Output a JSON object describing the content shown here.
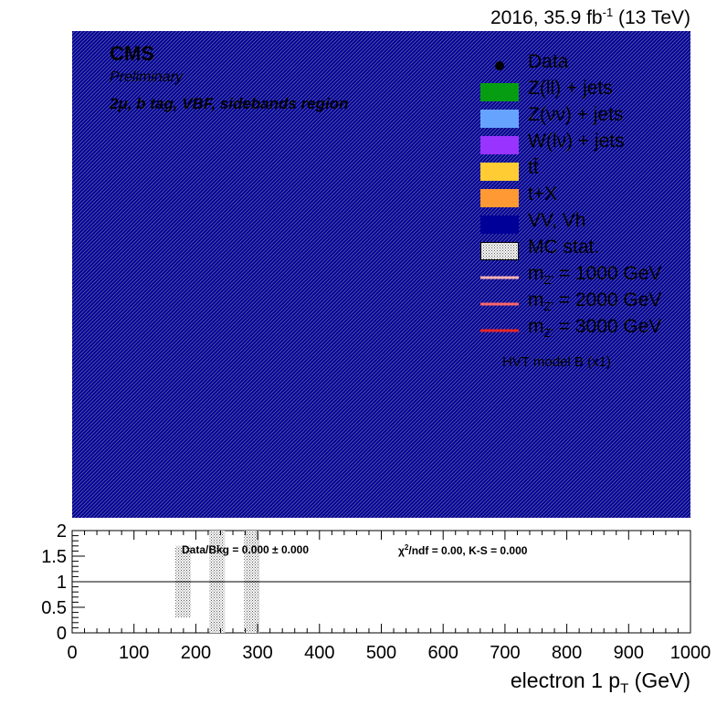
{
  "header": {
    "lumi_prefix": "2016, 35.9 fb",
    "lumi_exp": "-1",
    "lumi_suffix": " (13 TeV)",
    "cms": "CMS",
    "preliminary": "Preliminary",
    "region": "2μ, b tag, VBF, sidebands region"
  },
  "legend": {
    "items": [
      {
        "label": "Data",
        "kind": "marker",
        "color": "#000000"
      },
      {
        "label": "Z(ll) + jets",
        "kind": "fill",
        "color": "#079d13"
      },
      {
        "label": "Z(νν) + jets",
        "kind": "fill",
        "color": "#66a3ff"
      },
      {
        "label": "W(lν) + jets",
        "kind": "fill",
        "color": "#9933ff"
      },
      {
        "label": "tt̄",
        "kind": "fill",
        "color": "#ffcc33"
      },
      {
        "label": "t+X",
        "kind": "fill",
        "color": "#ff9933"
      },
      {
        "label": "VV, Vh",
        "kind": "fill",
        "color": "#000099"
      },
      {
        "label": "MC stat.",
        "kind": "hatch",
        "color": "#000000"
      },
      {
        "label": "m",
        "sub": "Z'",
        "suffix": " = 1000 GeV",
        "kind": "line",
        "color": "#ffb3b3"
      },
      {
        "label": "m",
        "sub": "Z'",
        "suffix": " = 2000 GeV",
        "kind": "line",
        "color": "#ff6666"
      },
      {
        "label": "m",
        "sub": "Z'",
        "suffix": " = 3000 GeV",
        "kind": "line",
        "color": "#e62626"
      }
    ],
    "note": "HVT model B (x1)"
  },
  "ratio": {
    "text_left": "Data/Bkg = 0.000 ± 0.000",
    "chi2_prefix": "χ",
    "chi2_exp": "2",
    "chi2_rest": "/ndf = 0.00,   K-S = 0.000"
  },
  "chart_data": [
    {
      "type": "area",
      "title": "",
      "xlabel": "electron 1 p_T (GeV)",
      "xlim": [
        0,
        1000
      ],
      "fill_color": "#000099",
      "hatch_color": "#000000",
      "x_ticks": [
        "0",
        "100",
        "200",
        "300",
        "400",
        "500",
        "600",
        "700",
        "800",
        "900",
        "1000"
      ]
    },
    {
      "type": "bar",
      "title": "",
      "ylabel": "",
      "xlim": [
        0,
        1000
      ],
      "ylim": [
        0,
        2
      ],
      "y_ticks": [
        "0",
        "0.5",
        "1",
        "1.5",
        "2"
      ],
      "reference_line": 1,
      "uncertainty_bands": [
        {
          "x_low": 167,
          "x_high": 192,
          "y_low": 0.3,
          "y_high": 1.7
        },
        {
          "x_low": 222,
          "x_high": 247,
          "y_low": 0.0,
          "y_high": 2.0
        },
        {
          "x_low": 278,
          "x_high": 303,
          "y_low": 0.0,
          "y_high": 2.0
        }
      ]
    }
  ]
}
